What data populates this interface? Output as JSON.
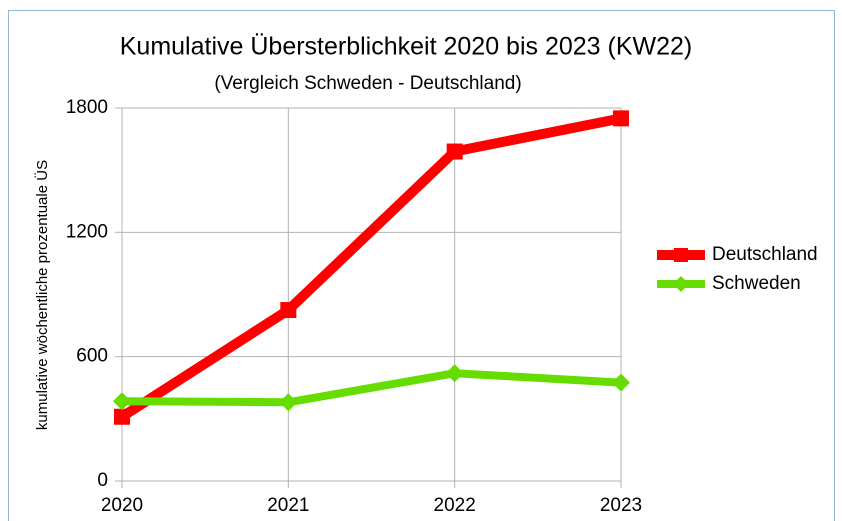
{
  "chart_data": {
    "type": "line",
    "title": "Kumulative Übersterblichkeit 2020 bis 2023 (KW22)",
    "subtitle": "(Vergleich Schweden - Deutschland)",
    "y_label": "kumulative wöchentliche prozentuale ÜS",
    "categories": [
      "2020",
      "2021",
      "2022",
      "2023"
    ],
    "series": [
      {
        "name": "Deutschland",
        "color": "#ff0000",
        "marker": "square",
        "values": [
          310,
          825,
          1590,
          1750
        ]
      },
      {
        "name": "Schweden",
        "color": "#66dd00",
        "marker": "diamond",
        "values": [
          385,
          380,
          520,
          475
        ]
      }
    ],
    "ylim": [
      0,
      1800
    ],
    "yticks": [
      0,
      600,
      1200,
      1800
    ],
    "grid": true,
    "legend": "right"
  }
}
